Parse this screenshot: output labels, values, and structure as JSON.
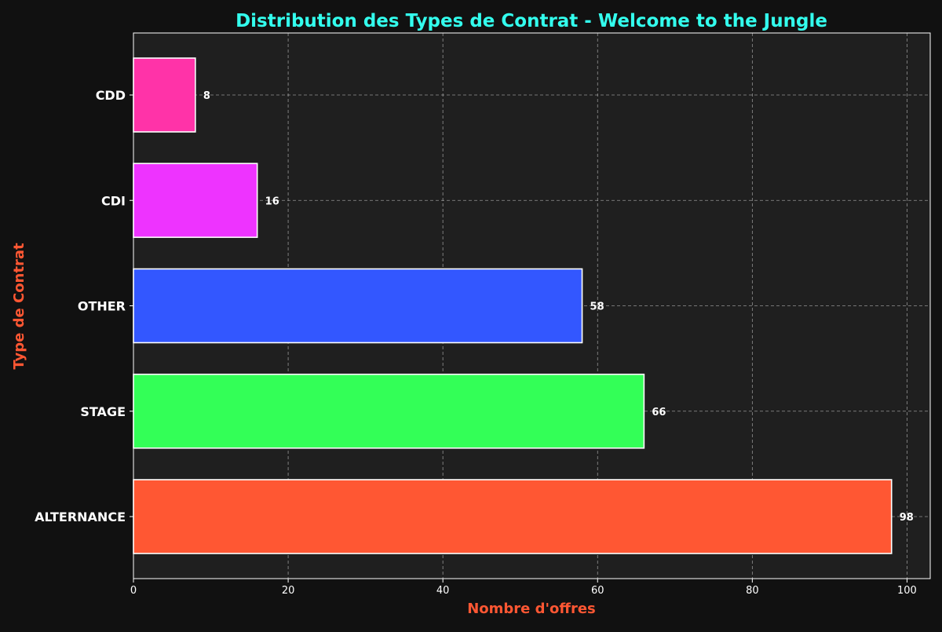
{
  "chart_data": {
    "type": "bar",
    "orientation": "horizontal",
    "title": "Distribution des Types de Contrat - Welcome to the Jungle",
    "xlabel": "Nombre d'offres",
    "ylabel": "Type de Contrat",
    "categories": [
      "ALTERNANCE",
      "STAGE",
      "OTHER",
      "CDI",
      "CDD"
    ],
    "values": [
      98,
      66,
      58,
      16,
      8
    ],
    "bar_colors": [
      "#ff5733",
      "#33ff57",
      "#3357ff",
      "#ee33ff",
      "#ff33a8"
    ],
    "xlim": [
      0,
      103
    ],
    "xticks": [
      0,
      20,
      40,
      60,
      80,
      100
    ],
    "grid": true,
    "colors": {
      "background": "#111111",
      "plot_background": "#1f1f1f",
      "title": "#33ffee",
      "axis_label": "#ff5733",
      "text": "#ffffff",
      "grid": "#bbbbbb"
    }
  }
}
